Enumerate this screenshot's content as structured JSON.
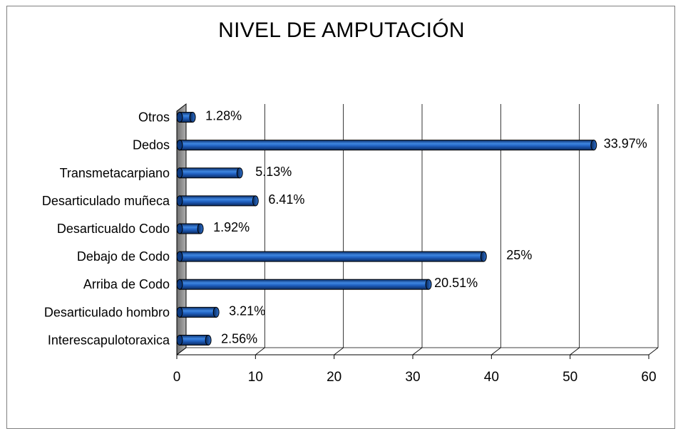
{
  "chart_data": {
    "type": "bar",
    "orientation": "horizontal",
    "title": "NIVEL DE AMPUTACIÓN",
    "xlabel": "",
    "ylabel": "",
    "categories": [
      "Otros",
      "Dedos",
      "Transmetacarpiano",
      "Desarticulado muñeca",
      "Desarticualdo Codo",
      "Debajo de Codo",
      "Arriba de Codo",
      "Desarticulado hombro",
      "Interescapulotoraxica"
    ],
    "values": [
      2,
      53,
      8,
      10,
      3,
      39,
      32,
      5,
      4
    ],
    "data_labels": [
      "1.28%",
      "33.97%",
      "5.13%",
      "6.41%",
      "1.92%",
      "25%",
      "20.51%",
      "3.21%",
      "2.56%"
    ],
    "xlim": [
      0,
      60
    ],
    "xticks": [
      0,
      10,
      20,
      30,
      40,
      50,
      60
    ],
    "grid": true,
    "legend": "none",
    "bar_color": "#1f5fbf"
  }
}
